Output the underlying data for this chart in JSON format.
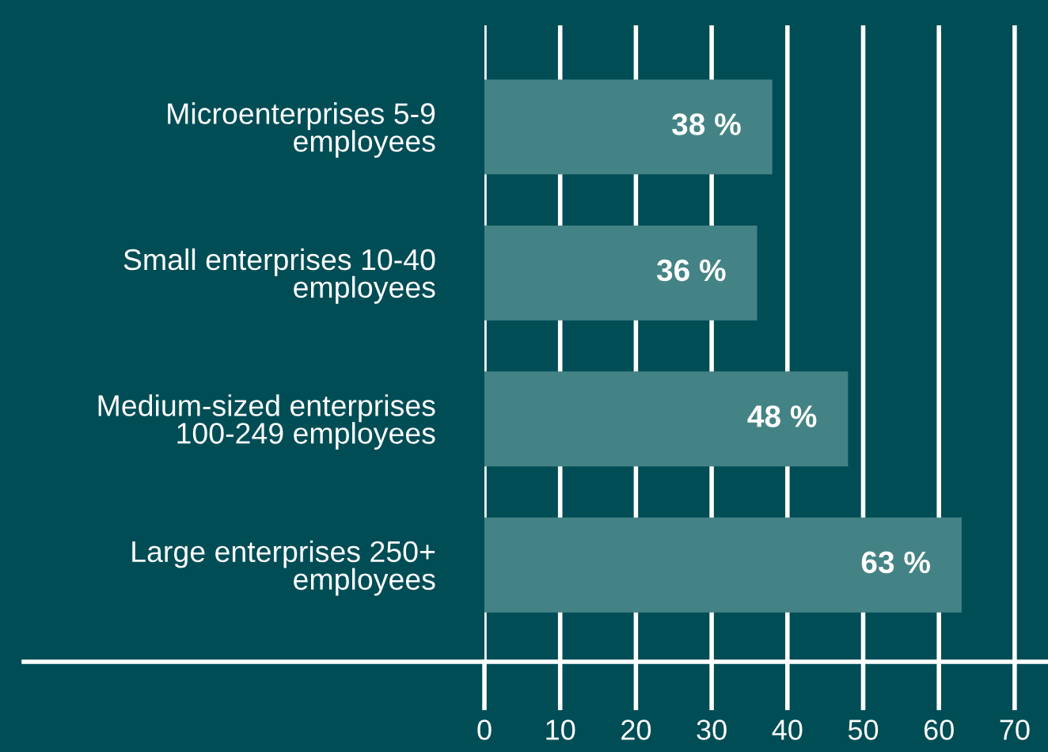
{
  "chart_data": {
    "type": "bar",
    "orientation": "horizontal",
    "categories": [
      "Microenterprises 5-9\nemployees",
      "Small enterprises 10-40\nemployees",
      "Medium-sized enterprises\n100-249 employees",
      "Large enterprises 250+\nemployees"
    ],
    "values": [
      38,
      36,
      48,
      63
    ],
    "value_labels": [
      "38 %",
      "36 %",
      "48 %",
      "63 %"
    ],
    "color": "#448385",
    "xlim": [
      0,
      74.4
    ],
    "xticks": [
      0,
      10,
      20,
      30,
      40,
      50,
      60,
      70
    ],
    "grid": "x",
    "legend": false
  }
}
